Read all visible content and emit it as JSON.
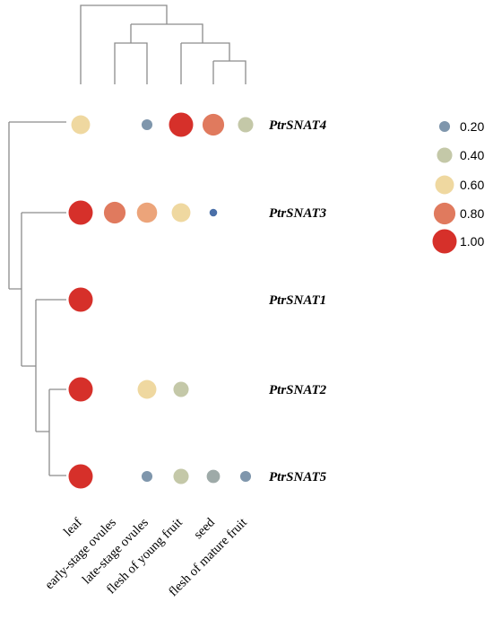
{
  "chart_data": {
    "type": "bubble-heatmap",
    "columns": [
      "leaf",
      "early-stage ovules",
      "late-stage ovules",
      "flesh of young fruit",
      "seed",
      "flesh of mature fruit"
    ],
    "rows": [
      "PtrSNAT4",
      "PtrSNAT3",
      "PtrSNAT1",
      "PtrSNAT2",
      "PtrSNAT5"
    ],
    "values": [
      [
        0.6,
        null,
        0.2,
        1.0,
        0.8,
        0.4
      ],
      [
        1.0,
        0.8,
        0.7,
        0.6,
        0.1,
        null
      ],
      [
        1.0,
        null,
        null,
        null,
        null,
        null
      ],
      [
        1.0,
        null,
        0.6,
        0.4,
        null,
        null
      ],
      [
        1.0,
        null,
        0.2,
        0.4,
        0.3,
        0.2
      ]
    ],
    "colors": {
      "0.1": "#4a6fa8",
      "0.2": "#7f96ac",
      "0.3": "#9eaaa8",
      "0.4": "#c4c8a8",
      "0.6": "#efd8a0",
      "0.7": "#eca47a",
      "0.8": "#e07a5e",
      "1.0": "#d6302a"
    },
    "legend": {
      "position": "right",
      "labels": [
        "0.20",
        "0.40",
        "0.60",
        "0.80",
        "1.00"
      ],
      "values": [
        0.2,
        0.4,
        0.6,
        0.8,
        1.0
      ]
    }
  }
}
